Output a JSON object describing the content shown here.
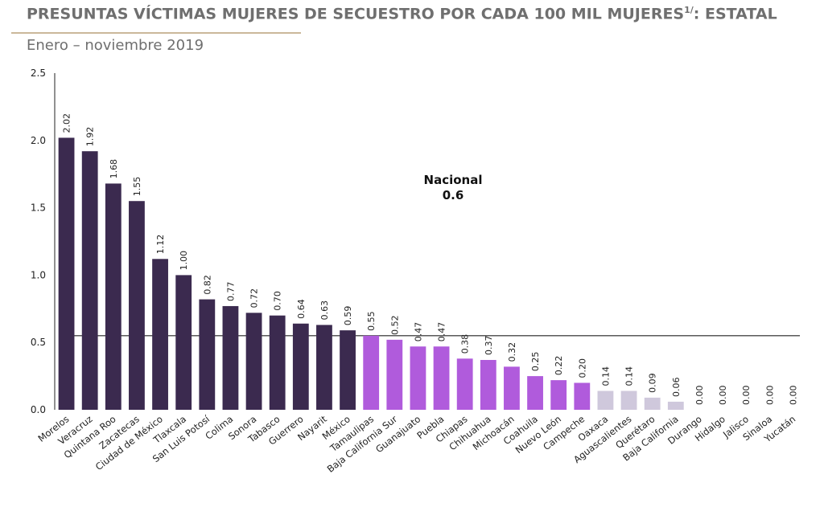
{
  "header": {
    "title": "PRESUNTAS VÍCTIMAS MUJERES DE SECUESTRO POR CADA 100 MIL MUJERES",
    "title_sup": "1/",
    "title_suffix": ": ESTATAL",
    "subtitle": "Enero – noviembre 2019"
  },
  "chart_data": {
    "type": "bar",
    "title": "PRESUNTAS VÍCTIMAS MUJERES DE SECUESTRO POR CADA 100 MIL MUJERES1/: ESTATAL",
    "subtitle": "Enero – noviembre 2019",
    "xlabel": "",
    "ylabel": "",
    "ylim": [
      0,
      2.5
    ],
    "yticks": [
      "0.0",
      "0.5",
      "1.0",
      "1.5",
      "2.0",
      "2.5"
    ],
    "grid": false,
    "categories": [
      "Morelos",
      "Veracruz",
      "Quintana Roo",
      "Zacatecas",
      "Ciudad de México",
      "Tlaxcala",
      "San Luis Potosí",
      "Colima",
      "Sonora",
      "Tabasco",
      "Guerrero",
      "Nayarit",
      "México",
      "Tamaulipas",
      "Baja California Sur",
      "Guanajuato",
      "Puebla",
      "Chiapas",
      "Chihuahua",
      "Michoacán",
      "Coahuila",
      "Nuevo León",
      "Campeche",
      "Oaxaca",
      "Aguascalientes",
      "Querétaro",
      "Baja California",
      "Durango",
      "Hidalgo",
      "Jalisco",
      "Sinaloa",
      "Yucatán"
    ],
    "values": [
      2.02,
      1.92,
      1.68,
      1.55,
      1.12,
      1.0,
      0.82,
      0.77,
      0.72,
      0.7,
      0.64,
      0.63,
      0.59,
      0.55,
      0.52,
      0.47,
      0.47,
      0.38,
      0.37,
      0.32,
      0.25,
      0.22,
      0.2,
      0.14,
      0.14,
      0.09,
      0.06,
      0.0,
      0.0,
      0.0,
      0.0,
      0.0
    ],
    "value_labels": [
      "2.02",
      "1.92",
      "1.68",
      "1.55",
      "1.12",
      "1.00",
      "0.82",
      "0.77",
      "0.72",
      "0.70",
      "0.64",
      "0.63",
      "0.59",
      "0.55",
      "0.52",
      "0.47",
      "0.47",
      "0.38",
      "0.37",
      "0.32",
      "0.25",
      "0.22",
      "0.20",
      "0.14",
      "0.14",
      "0.09",
      "0.06",
      "0.00",
      "0.00",
      "0.00",
      "0.00",
      "0.00"
    ],
    "bar_groups": [
      {
        "from": 0,
        "to": 12,
        "color": "#3b2a4f"
      },
      {
        "from": 13,
        "to": 22,
        "color": "#b05bdc"
      },
      {
        "from": 23,
        "to": 31,
        "color": "#cfc8dc"
      }
    ],
    "reference_line": {
      "label": "Nacional",
      "value_label": "0.6",
      "value": 0.55,
      "color": "#222222"
    }
  }
}
